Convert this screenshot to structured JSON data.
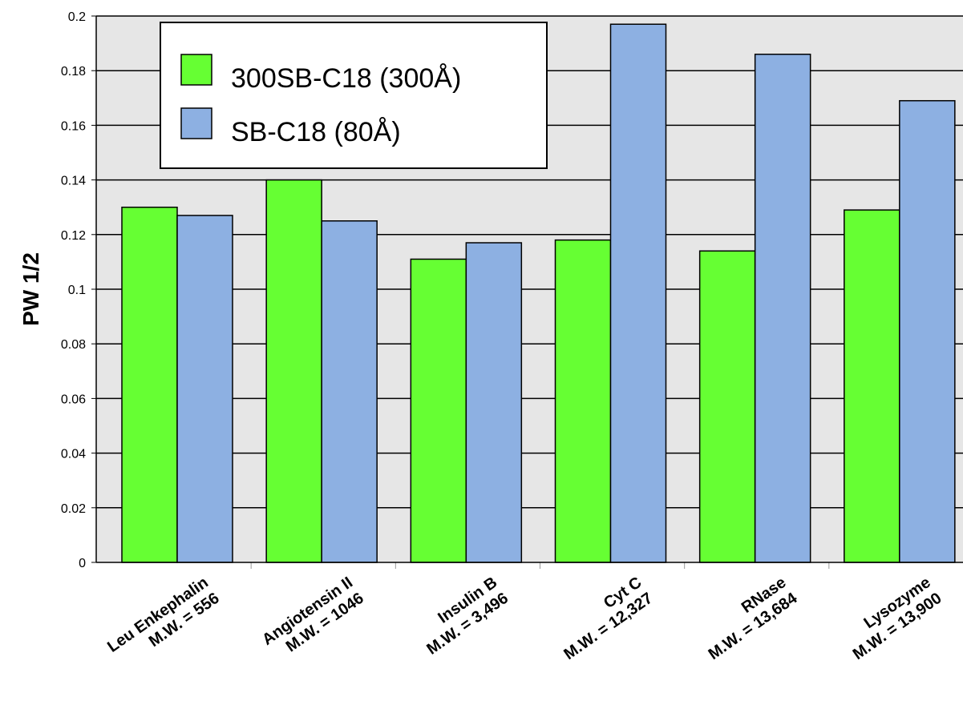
{
  "chart_data": {
    "type": "bar",
    "ylabel": "PW 1/2",
    "ylim": [
      0,
      0.2
    ],
    "yticks": [
      "0",
      "0.02",
      "0.04",
      "0.06",
      "0.08",
      "0.1",
      "0.12",
      "0.14",
      "0.16",
      "0.18",
      "0.2"
    ],
    "grid": true,
    "legend_position": "top-left",
    "background": "#e6e6e6",
    "categories": [
      {
        "line1": "Leu Enkephalin",
        "line2": "M.W. = 556"
      },
      {
        "line1": "Angiotensin II",
        "line2": "M.W. = 1046"
      },
      {
        "line1": "Insulin B",
        "line2": "M.W. = 3,496"
      },
      {
        "line1": "Cyt C",
        "line2": "M.W. = 12,327"
      },
      {
        "line1": "RNase",
        "line2": "M.W. = 13,684"
      },
      {
        "line1": "Lysozyme",
        "line2": "M.W. = 13,900"
      }
    ],
    "series": [
      {
        "name": "300SB-C18 (300Å)",
        "color": "#66ff33",
        "values": [
          0.13,
          0.14,
          0.111,
          0.118,
          0.114,
          0.129
        ]
      },
      {
        "name": "SB-C18 (80Å)",
        "color": "#8db0e2",
        "values": [
          0.127,
          0.125,
          0.117,
          0.197,
          0.186,
          0.169
        ]
      }
    ]
  }
}
